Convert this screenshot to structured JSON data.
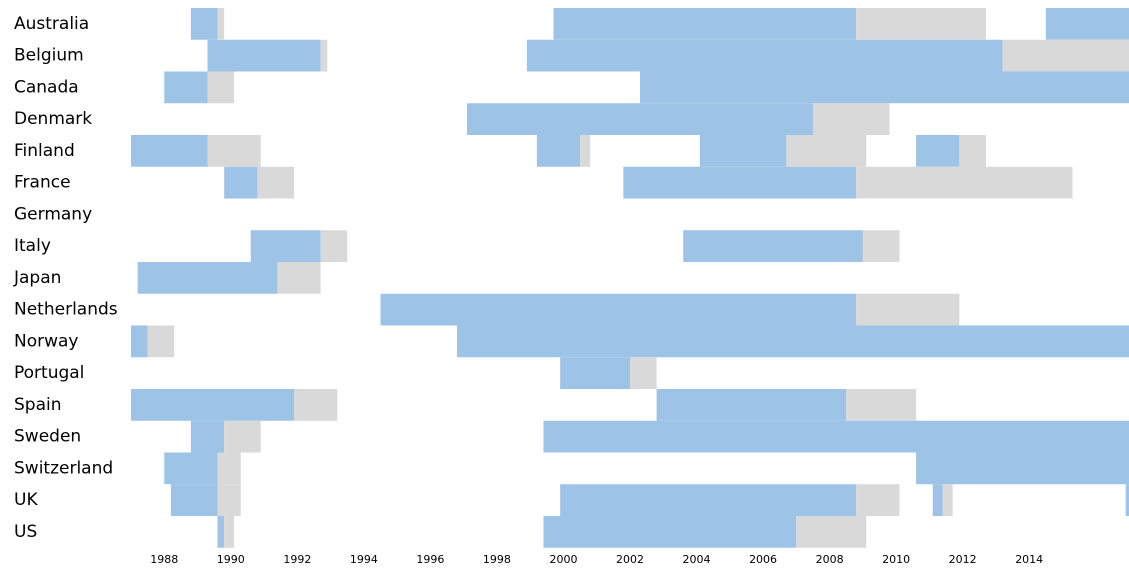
{
  "chart_data": {
    "type": "timeline",
    "categories": [
      "Australia",
      "Belgium",
      "Canada",
      "Denmark",
      "Finland",
      "France",
      "Germany",
      "Italy",
      "Japan",
      "Netherlands",
      "Norway",
      "Portugal",
      "Spain",
      "Sweden",
      "Switzerland",
      "UK",
      "US"
    ],
    "xlim": [
      1987,
      2017
    ],
    "xticks": [
      1988,
      1990,
      1992,
      1994,
      1996,
      1998,
      2000,
      2002,
      2004,
      2006,
      2008,
      2010,
      2012,
      2014
    ],
    "series": [
      {
        "color": "#9dc3e6",
        "ranges": [
          [
            [
              1988.8,
              1989.6
            ],
            [
              1999.7,
              2008.8
            ],
            [
              2014.5,
              2017
            ]
          ],
          [
            [
              1989.3,
              1992.7
            ],
            [
              1998.9,
              2013.2
            ]
          ],
          [
            [
              1988.0,
              1989.3
            ],
            [
              2002.3,
              2017
            ]
          ],
          [
            [
              1997.1,
              2007.5
            ]
          ],
          [
            [
              1987.0,
              1989.3
            ],
            [
              1999.2,
              2000.5
            ],
            [
              2004.1,
              2006.7
            ],
            [
              2010.6,
              2011.9
            ]
          ],
          [
            [
              1989.8,
              1990.8
            ],
            [
              2001.8,
              2008.8
            ]
          ],
          [],
          [
            [
              1990.6,
              1992.7
            ],
            [
              2003.6,
              2009.0
            ]
          ],
          [
            [
              1987.2,
              1991.4
            ]
          ],
          [
            [
              1994.5,
              2008.8
            ]
          ],
          [
            [
              1987.0,
              1987.5
            ],
            [
              1996.8,
              2017
            ]
          ],
          [
            [
              1999.9,
              2002.0
            ]
          ],
          [
            [
              1987.0,
              1991.9
            ],
            [
              2002.8,
              2008.5
            ]
          ],
          [
            [
              1988.8,
              1989.8
            ],
            [
              1999.4,
              2017
            ]
          ],
          [
            [
              1988.0,
              1989.6
            ],
            [
              2010.6,
              2017
            ]
          ],
          [
            [
              1988.2,
              1989.6
            ],
            [
              1999.9,
              2008.8
            ],
            [
              2011.1,
              2011.4
            ],
            [
              2016.9,
              2017
            ]
          ],
          [
            [
              1989.6,
              1989.8
            ],
            [
              1999.4,
              2007.0
            ]
          ]
        ]
      },
      {
        "color": "#d9d9d9",
        "ranges": [
          [
            [
              1989.6,
              1989.8
            ],
            [
              2008.8,
              2012.7
            ]
          ],
          [
            [
              1992.7,
              1992.9
            ],
            [
              2013.2,
              2017
            ]
          ],
          [
            [
              1989.3,
              1990.1
            ]
          ],
          [
            [
              2007.5,
              2009.8
            ]
          ],
          [
            [
              1989.3,
              1990.9
            ],
            [
              2000.5,
              2000.8
            ],
            [
              2006.7,
              2009.1
            ],
            [
              2011.9,
              2012.7
            ]
          ],
          [
            [
              1990.8,
              1991.9
            ],
            [
              2008.8,
              2015.3
            ]
          ],
          [],
          [
            [
              1992.7,
              1993.5
            ],
            [
              2009.0,
              2010.1
            ]
          ],
          [
            [
              1991.4,
              1992.7
            ]
          ],
          [
            [
              2008.8,
              2011.9
            ]
          ],
          [
            [
              1987.5,
              1988.3
            ]
          ],
          [
            [
              2002.0,
              2002.8
            ]
          ],
          [
            [
              1991.9,
              1993.2
            ],
            [
              2008.5,
              2010.6
            ]
          ],
          [
            [
              1989.8,
              1990.9
            ]
          ],
          [
            [
              1989.6,
              1990.3
            ]
          ],
          [
            [
              1989.6,
              1990.3
            ],
            [
              2008.8,
              2010.1
            ],
            [
              2011.4,
              2011.7
            ]
          ],
          [
            [
              1989.8,
              1990.1
            ],
            [
              2007.0,
              2009.1
            ]
          ]
        ]
      }
    ]
  }
}
